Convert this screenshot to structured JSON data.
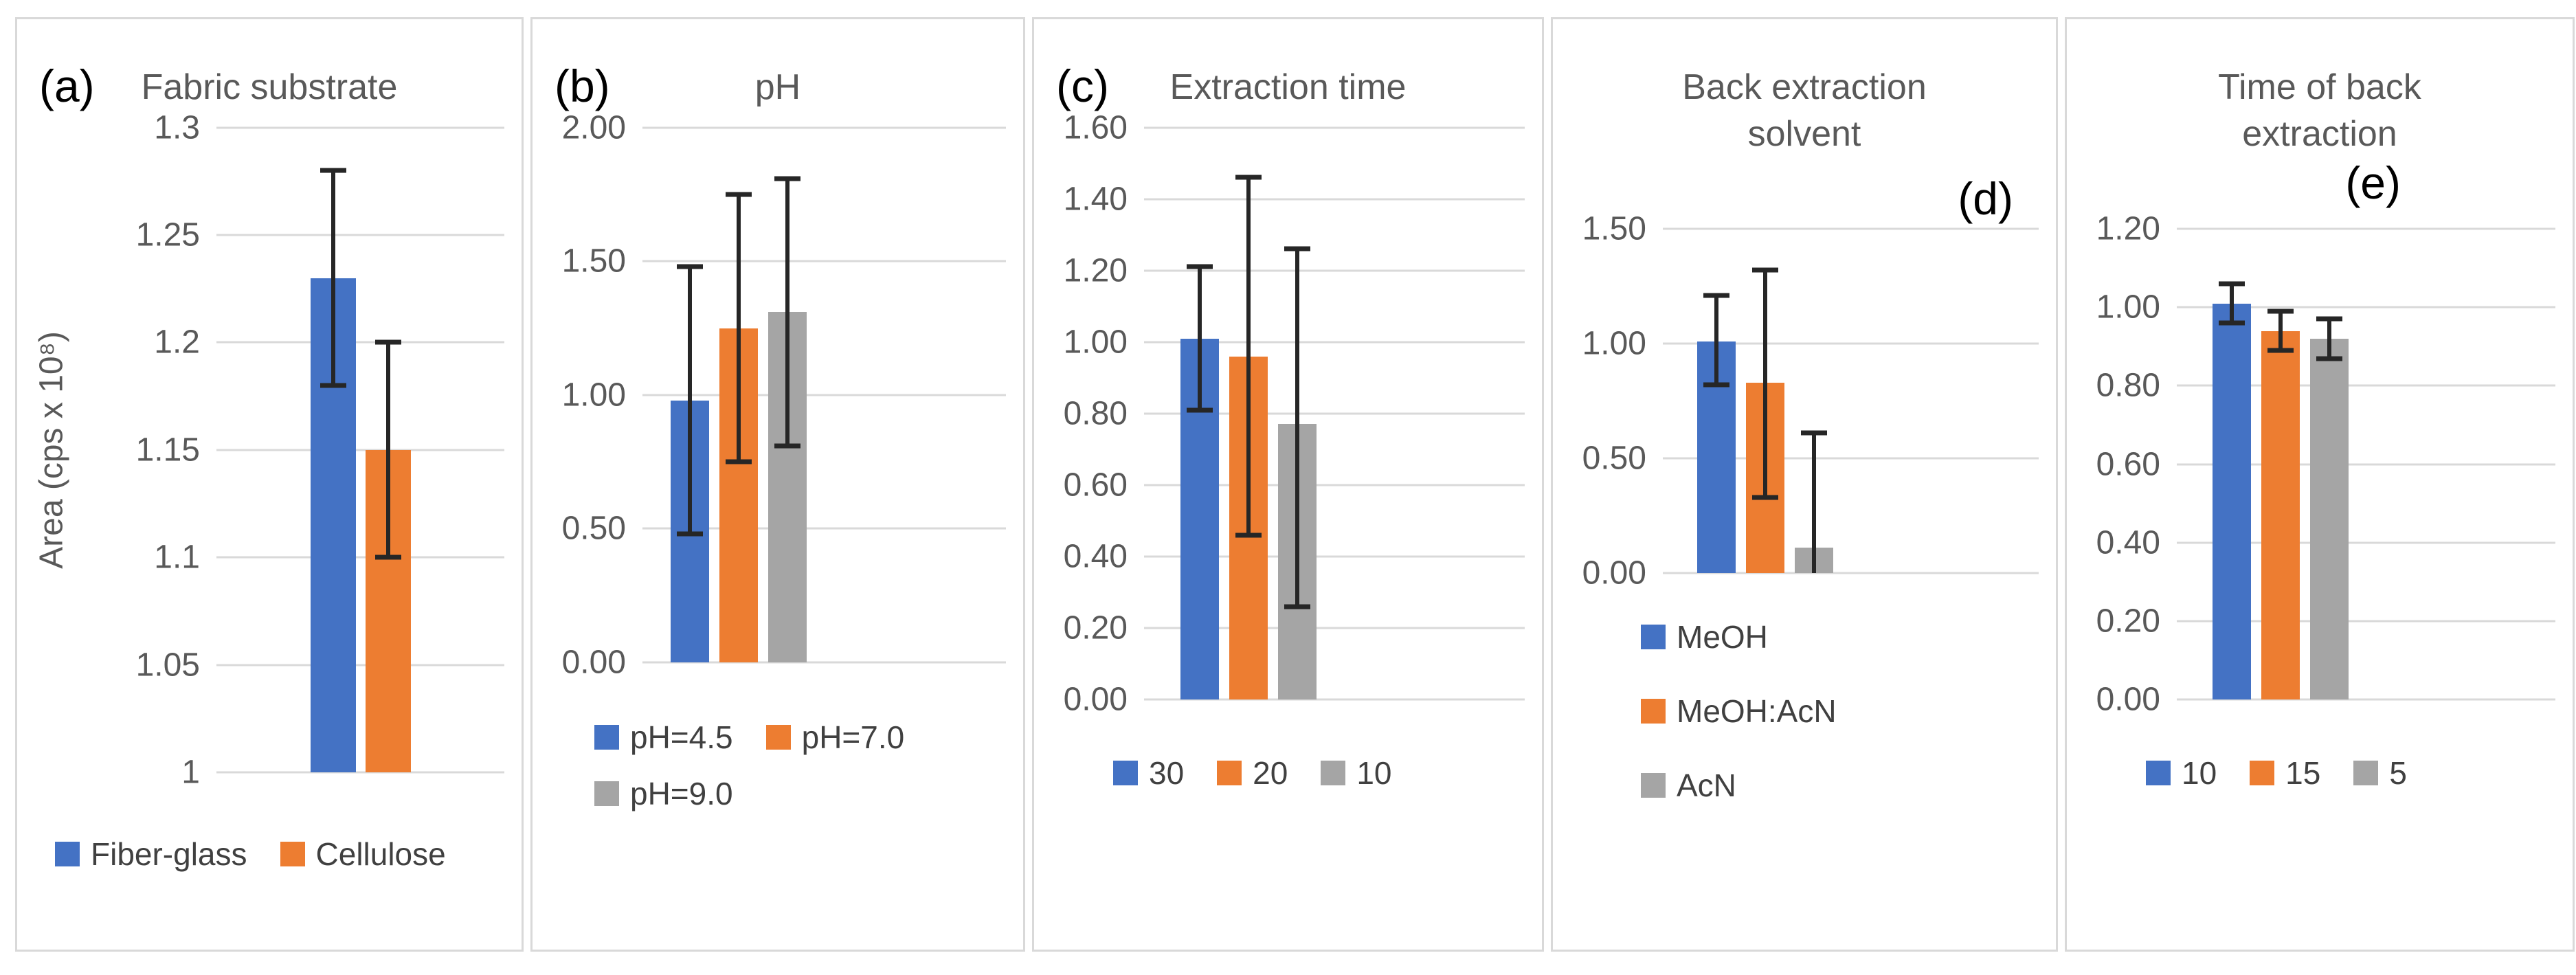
{
  "figure_name": "Optimization bar charts with error bars",
  "colors": {
    "blue": "#4472C4",
    "orange": "#ED7D31",
    "gray": "#A5A5A5",
    "grid": "#D9D9D9",
    "axis_text": "#595959",
    "title_text": "#595959",
    "panel_label_text": "#000000",
    "whisker": "#262626",
    "legend_text": "#404040",
    "panel_border": "#D9D9D9",
    "background": "#FFFFFF"
  },
  "chart_data": [
    {
      "id": "a",
      "type": "bar",
      "panel_label": "(a)",
      "title": "Fabric substrate",
      "y_axis_title": "Area (cps x 10⁸)",
      "ylim": [
        1,
        1.3
      ],
      "yticks": [
        "1.3",
        "1.25",
        "1.2",
        "1.15",
        "1.1",
        "1.05",
        "1"
      ],
      "grid": true,
      "legend_layout": "row",
      "legend_position": "bottom",
      "series": [
        {
          "name": "Fiber-glass",
          "color": "blue",
          "value": 1.23,
          "err_low": 1.18,
          "err_high": 1.28
        },
        {
          "name": "Cellulose",
          "color": "orange",
          "value": 1.15,
          "err_low": 1.1,
          "err_high": 1.2
        }
      ]
    },
    {
      "id": "b",
      "type": "bar",
      "panel_label": "(b)",
      "title": "pH",
      "y_axis_title": "",
      "ylim": [
        0,
        2.0
      ],
      "yticks": [
        "2.00",
        "1.50",
        "1.00",
        "0.50",
        "0.00"
      ],
      "grid": true,
      "legend_layout": "wrap2",
      "legend_position": "bottom",
      "series": [
        {
          "name": "pH=4.5",
          "color": "blue",
          "value": 0.98,
          "err_low": 0.48,
          "err_high": 1.48
        },
        {
          "name": "pH=7.0",
          "color": "orange",
          "value": 1.25,
          "err_low": 0.75,
          "err_high": 1.75
        },
        {
          "name": "pH=9.0",
          "color": "gray",
          "value": 1.31,
          "err_low": 0.81,
          "err_high": 1.81
        }
      ]
    },
    {
      "id": "c",
      "type": "bar",
      "panel_label": "(c)",
      "title": "Extraction time",
      "y_axis_title": "",
      "ylim": [
        0,
        1.6
      ],
      "yticks": [
        "1.60",
        "1.40",
        "1.20",
        "1.00",
        "0.80",
        "0.60",
        "0.40",
        "0.20",
        "0.00"
      ],
      "grid": true,
      "legend_layout": "row",
      "legend_position": "bottom",
      "series": [
        {
          "name": "30",
          "color": "blue",
          "value": 1.01,
          "err_low": 0.81,
          "err_high": 1.21
        },
        {
          "name": "20",
          "color": "orange",
          "value": 0.96,
          "err_low": 0.46,
          "err_high": 1.46
        },
        {
          "name": "10",
          "color": "gray",
          "value": 0.77,
          "err_low": 0.26,
          "err_high": 1.26
        }
      ]
    },
    {
      "id": "d",
      "type": "bar",
      "panel_label": "(d)",
      "title": "Back extraction\nsolvent",
      "y_axis_title": "",
      "ylim": [
        0,
        1.5
      ],
      "yticks": [
        "1.50",
        "1.00",
        "0.50",
        "0.00"
      ],
      "grid": true,
      "legend_layout": "column",
      "legend_position": "bottom",
      "series": [
        {
          "name": "MeOH",
          "color": "blue",
          "value": 1.01,
          "err_low": 0.82,
          "err_high": 1.21
        },
        {
          "name": "MeOH:AcN",
          "color": "orange",
          "value": 0.83,
          "err_low": 0.33,
          "err_high": 1.32
        },
        {
          "name": "AcN",
          "color": "gray",
          "value": 0.11,
          "err_low": 0.0,
          "err_high": 0.61,
          "cap_low": false
        }
      ]
    },
    {
      "id": "e",
      "type": "bar",
      "panel_label": "(e)",
      "title": "Time of back\nextraction",
      "y_axis_title": "",
      "ylim": [
        0,
        1.2
      ],
      "yticks": [
        "1.20",
        "1.00",
        "0.80",
        "0.60",
        "0.40",
        "0.20",
        "0.00"
      ],
      "grid": true,
      "legend_layout": "row",
      "legend_position": "bottom",
      "series": [
        {
          "name": "10",
          "color": "blue",
          "value": 1.01,
          "err_low": 0.96,
          "err_high": 1.06
        },
        {
          "name": "15",
          "color": "orange",
          "value": 0.94,
          "err_low": 0.89,
          "err_high": 0.99
        },
        {
          "name": "5",
          "color": "gray",
          "value": 0.92,
          "err_low": 0.87,
          "err_high": 0.97
        }
      ]
    }
  ]
}
